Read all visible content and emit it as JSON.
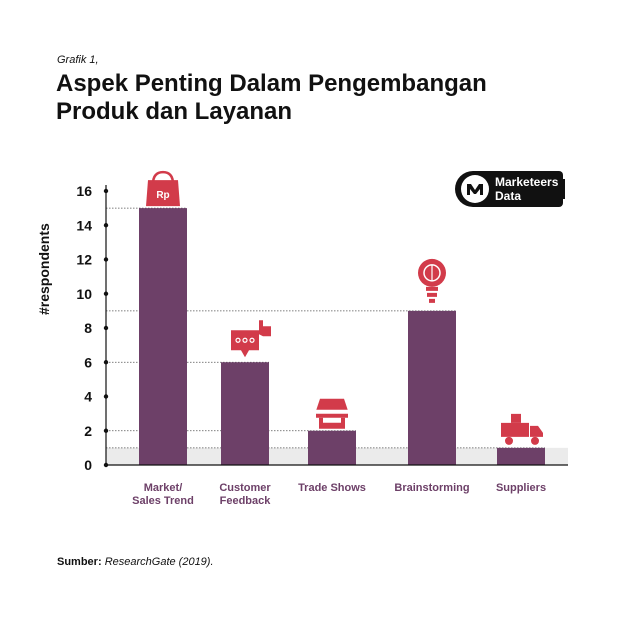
{
  "header": {
    "kicker": "Grafik 1,",
    "title_line1": "Aspek Penting Dalam Pengembangan",
    "title_line2": "Produk dan Layanan"
  },
  "badge": {
    "line1": "Marketeers",
    "line2": "Data",
    "icon": "m-logo-icon"
  },
  "source": {
    "label": "Sumber:",
    "text": "ResearchGate (2019)."
  },
  "colors": {
    "bar": "#6d4068",
    "icon": "#d23b4a",
    "axis": "#111111",
    "xlabel": "#6d4068"
  },
  "chart_data": {
    "type": "bar",
    "ylabel": "#respondents",
    "xlabel": "",
    "ylim": [
      0,
      16
    ],
    "yticks": [
      0,
      2,
      4,
      6,
      8,
      10,
      12,
      14,
      16
    ],
    "categories": [
      "Market/ Sales Trend",
      "Customer Feedback",
      "Trade Shows",
      "Brainstorming",
      "Suppliers"
    ],
    "category_lines": [
      [
        "Market/",
        "Sales Trend"
      ],
      [
        "Customer",
        "Feedback"
      ],
      [
        "Trade Shows"
      ],
      [
        "Brainstorming"
      ],
      [
        "Suppliers"
      ]
    ],
    "values": [
      15,
      6,
      2,
      9,
      1
    ],
    "icons": [
      "shopping-bag-icon",
      "thumbs-up-chat-icon",
      "market-stall-icon",
      "lightbulb-brain-icon",
      "delivery-truck-icon"
    ],
    "bag_text": "Rp"
  }
}
